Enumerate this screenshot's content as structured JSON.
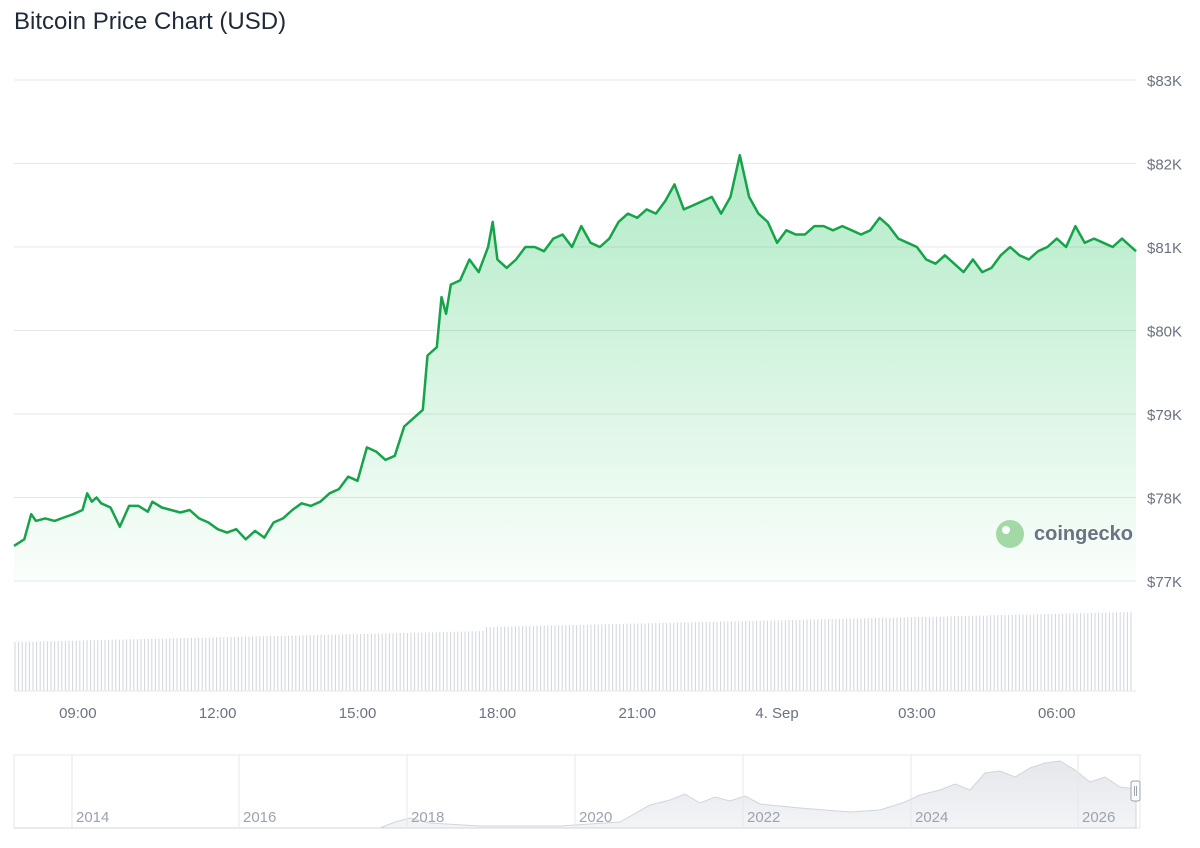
{
  "title": "Bitcoin Price Chart (USD)",
  "watermark": "coingecko",
  "colors": {
    "line": "#16a34a",
    "fill": "#22c55e",
    "grid": "#e5e7eb",
    "volume": "#d1d5db",
    "navigator": "#e5e7eb"
  },
  "chart_data": {
    "type": "line",
    "title": "Bitcoin Price Chart (USD)",
    "xlabel": "",
    "ylabel": "",
    "y_ticks": [
      {
        "value": 83000,
        "label": "$83K"
      },
      {
        "value": 82000,
        "label": "$82K"
      },
      {
        "value": 81000,
        "label": "$81K"
      },
      {
        "value": 80000,
        "label": "$80K"
      },
      {
        "value": 79000,
        "label": "$79K"
      },
      {
        "value": 78000,
        "label": "$78K"
      },
      {
        "value": 77000,
        "label": "$77K"
      }
    ],
    "ylim": [
      77000,
      83000
    ],
    "x_ticks": [
      {
        "hour": 9,
        "label": "09:00"
      },
      {
        "hour": 12,
        "label": "12:00"
      },
      {
        "hour": 15,
        "label": "15:00"
      },
      {
        "hour": 18,
        "label": "18:00"
      },
      {
        "hour": 21,
        "label": "21:00"
      },
      {
        "hour": 24,
        "label": "4. Sep"
      },
      {
        "hour": 27,
        "label": "03:00"
      },
      {
        "hour": 30,
        "label": "06:00"
      }
    ],
    "xlim": [
      7.63,
      31.7
    ],
    "series": [
      {
        "x": [
          7.63,
          7.85,
          8.0,
          8.1,
          8.3,
          8.5,
          8.7,
          8.9,
          9.1,
          9.2,
          9.3,
          9.4,
          9.5,
          9.7,
          9.9,
          10.1,
          10.3,
          10.5,
          10.6,
          10.8,
          11.0,
          11.2,
          11.4,
          11.6,
          11.8,
          12.0,
          12.2,
          12.4,
          12.6,
          12.8,
          13.0,
          13.2,
          13.4,
          13.6,
          13.8,
          14.0,
          14.2,
          14.4,
          14.6,
          14.8,
          15.0,
          15.2,
          15.4,
          15.6,
          15.8,
          16.0,
          16.2,
          16.4,
          16.5,
          16.7,
          16.8,
          16.9,
          17.0,
          17.2,
          17.4,
          17.6,
          17.8,
          17.9,
          18.0,
          18.2,
          18.4,
          18.6,
          18.8,
          19.0,
          19.2,
          19.4,
          19.6,
          19.8,
          20.0,
          20.2,
          20.4,
          20.6,
          20.8,
          21.0,
          21.2,
          21.4,
          21.6,
          21.8,
          22.0,
          22.2,
          22.4,
          22.6,
          22.8,
          23.0,
          23.2,
          23.4,
          23.6,
          23.8,
          24.0,
          24.2,
          24.4,
          24.6,
          24.8,
          25.0,
          25.2,
          25.4,
          25.6,
          25.8,
          26.0,
          26.2,
          26.4,
          26.6,
          26.8,
          27.0,
          27.2,
          27.4,
          27.6,
          27.8,
          28.0,
          28.2,
          28.4,
          28.6,
          28.8,
          29.0,
          29.2,
          29.4,
          29.6,
          29.8,
          30.0,
          30.2,
          30.4,
          30.6,
          30.8,
          31.0,
          31.2,
          31.4,
          31.6,
          31.7
        ],
        "values": [
          77420,
          77500,
          77800,
          77720,
          77750,
          77720,
          77760,
          77800,
          77850,
          78050,
          77950,
          78000,
          77930,
          77880,
          77650,
          77900,
          77900,
          77830,
          77950,
          77880,
          77850,
          77820,
          77850,
          77750,
          77700,
          77620,
          77580,
          77620,
          77500,
          77600,
          77520,
          77700,
          77750,
          77850,
          77930,
          77900,
          77950,
          78050,
          78100,
          78250,
          78200,
          78600,
          78550,
          78450,
          78500,
          78850,
          78950,
          79050,
          79700,
          79800,
          80400,
          80200,
          80550,
          80600,
          80850,
          80700,
          81000,
          81300,
          80850,
          80750,
          80850,
          81000,
          81000,
          80950,
          81100,
          81150,
          81000,
          81250,
          81050,
          81000,
          81100,
          81300,
          81400,
          81350,
          81450,
          81400,
          81550,
          81750,
          81450,
          81500,
          81550,
          81600,
          81400,
          81600,
          82100,
          81600,
          81400,
          81300,
          81050,
          81200,
          81150,
          81150,
          81250,
          81250,
          81200,
          81250,
          81200,
          81150,
          81200,
          81350,
          81250,
          81100,
          81050,
          81000,
          80850,
          80800,
          80900,
          80800,
          80700,
          80850,
          80700,
          80750,
          80900,
          81000,
          80900,
          80850,
          80950,
          81000,
          81100,
          81000,
          81250,
          81050,
          81100,
          81050,
          81000,
          81100,
          81000,
          80950
        ]
      }
    ],
    "navigator_ticks": [
      "2014",
      "2016",
      "2018",
      "2020",
      "2022",
      "2024",
      "2026"
    ]
  }
}
